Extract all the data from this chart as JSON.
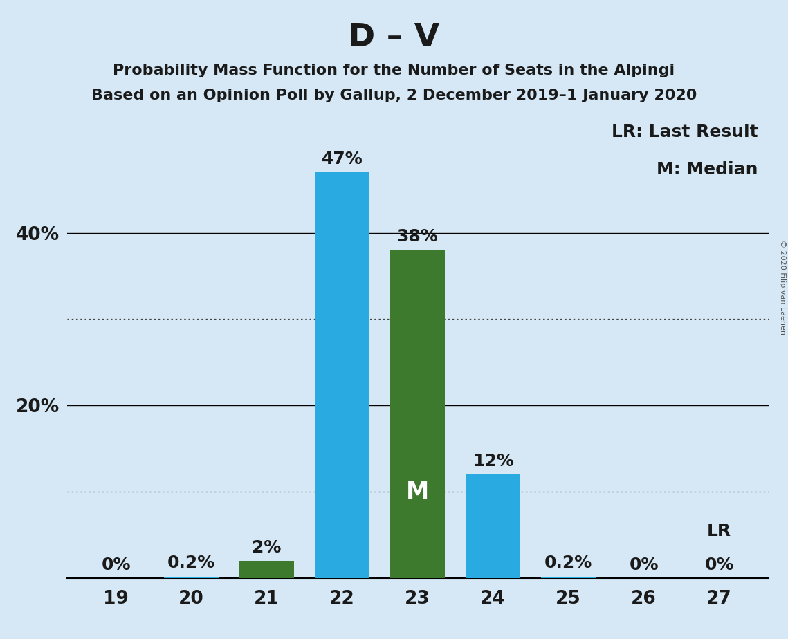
{
  "title": "D – V",
  "subtitle1": "Probability Mass Function for the Number of Seats in the Alpingi",
  "subtitle2": "Based on an Opinion Poll by Gallup, 2 December 2019–1 January 2020",
  "copyright": "© 2020 Filip van Laenen",
  "categories": [
    19,
    20,
    21,
    22,
    23,
    24,
    25,
    26,
    27
  ],
  "values": [
    0.0,
    0.2,
    2.0,
    47.0,
    38.0,
    12.0,
    0.2,
    0.0,
    0.0
  ],
  "bar_colors": [
    "#29ABE2",
    "#29ABE2",
    "#3E7A2E",
    "#29ABE2",
    "#3E7A2E",
    "#29ABE2",
    "#29ABE2",
    "#29ABE2",
    "#29ABE2"
  ],
  "labels": [
    "0%",
    "0.2%",
    "2%",
    "47%",
    "38%",
    "12%",
    "0.2%",
    "0%",
    "0%"
  ],
  "show_label_above": [
    true,
    true,
    true,
    true,
    true,
    true,
    true,
    true,
    false
  ],
  "median_bar": 23,
  "median_label": "M",
  "lr_bar": 27,
  "lr_label_above_bar": "LR",
  "legend_lr": "LR: Last Result",
  "legend_m": "M: Median",
  "background_color": "#D6E8F5",
  "bar_width": 0.72,
  "ylim_max": 54,
  "solid_gridlines": [
    20.0,
    40.0
  ],
  "dotted_gridlines": [
    10.0,
    30.0
  ],
  "title_fontsize": 34,
  "subtitle_fontsize": 16,
  "label_fontsize": 18,
  "tick_fontsize": 19,
  "legend_fontsize": 18,
  "median_label_fontsize": 24,
  "lr_label_fontsize": 18
}
